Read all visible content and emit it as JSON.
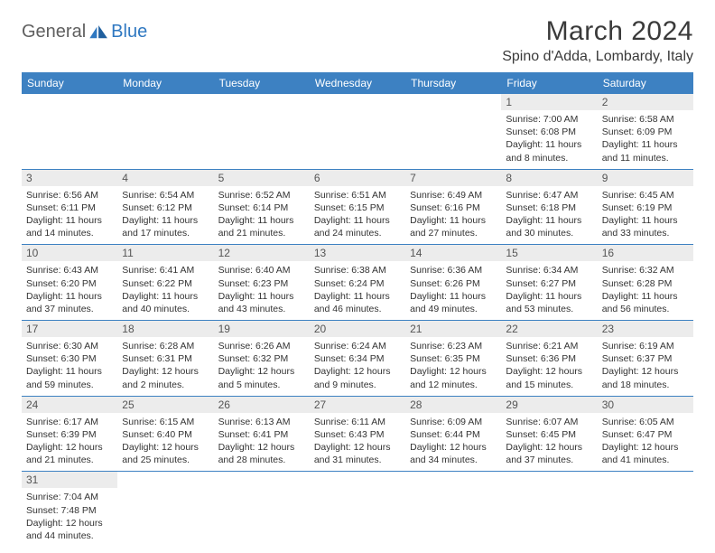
{
  "brand": {
    "general": "General",
    "blue": "Blue"
  },
  "title": "March 2024",
  "location": "Spino d'Adda, Lombardy, Italy",
  "colors": {
    "header_bg": "#3d81c2",
    "header_text": "#ffffff",
    "daynum_bg": "#ececec",
    "border": "#3d81c2",
    "brand_blue": "#2f78c1",
    "brand_gray": "#5f5f5f"
  },
  "weekdays": [
    "Sunday",
    "Monday",
    "Tuesday",
    "Wednesday",
    "Thursday",
    "Friday",
    "Saturday"
  ],
  "weeks": [
    [
      null,
      null,
      null,
      null,
      null,
      {
        "n": "1",
        "sunrise": "Sunrise: 7:00 AM",
        "sunset": "Sunset: 6:08 PM",
        "daylight": "Daylight: 11 hours and 8 minutes."
      },
      {
        "n": "2",
        "sunrise": "Sunrise: 6:58 AM",
        "sunset": "Sunset: 6:09 PM",
        "daylight": "Daylight: 11 hours and 11 minutes."
      }
    ],
    [
      {
        "n": "3",
        "sunrise": "Sunrise: 6:56 AM",
        "sunset": "Sunset: 6:11 PM",
        "daylight": "Daylight: 11 hours and 14 minutes."
      },
      {
        "n": "4",
        "sunrise": "Sunrise: 6:54 AM",
        "sunset": "Sunset: 6:12 PM",
        "daylight": "Daylight: 11 hours and 17 minutes."
      },
      {
        "n": "5",
        "sunrise": "Sunrise: 6:52 AM",
        "sunset": "Sunset: 6:14 PM",
        "daylight": "Daylight: 11 hours and 21 minutes."
      },
      {
        "n": "6",
        "sunrise": "Sunrise: 6:51 AM",
        "sunset": "Sunset: 6:15 PM",
        "daylight": "Daylight: 11 hours and 24 minutes."
      },
      {
        "n": "7",
        "sunrise": "Sunrise: 6:49 AM",
        "sunset": "Sunset: 6:16 PM",
        "daylight": "Daylight: 11 hours and 27 minutes."
      },
      {
        "n": "8",
        "sunrise": "Sunrise: 6:47 AM",
        "sunset": "Sunset: 6:18 PM",
        "daylight": "Daylight: 11 hours and 30 minutes."
      },
      {
        "n": "9",
        "sunrise": "Sunrise: 6:45 AM",
        "sunset": "Sunset: 6:19 PM",
        "daylight": "Daylight: 11 hours and 33 minutes."
      }
    ],
    [
      {
        "n": "10",
        "sunrise": "Sunrise: 6:43 AM",
        "sunset": "Sunset: 6:20 PM",
        "daylight": "Daylight: 11 hours and 37 minutes."
      },
      {
        "n": "11",
        "sunrise": "Sunrise: 6:41 AM",
        "sunset": "Sunset: 6:22 PM",
        "daylight": "Daylight: 11 hours and 40 minutes."
      },
      {
        "n": "12",
        "sunrise": "Sunrise: 6:40 AM",
        "sunset": "Sunset: 6:23 PM",
        "daylight": "Daylight: 11 hours and 43 minutes."
      },
      {
        "n": "13",
        "sunrise": "Sunrise: 6:38 AM",
        "sunset": "Sunset: 6:24 PM",
        "daylight": "Daylight: 11 hours and 46 minutes."
      },
      {
        "n": "14",
        "sunrise": "Sunrise: 6:36 AM",
        "sunset": "Sunset: 6:26 PM",
        "daylight": "Daylight: 11 hours and 49 minutes."
      },
      {
        "n": "15",
        "sunrise": "Sunrise: 6:34 AM",
        "sunset": "Sunset: 6:27 PM",
        "daylight": "Daylight: 11 hours and 53 minutes."
      },
      {
        "n": "16",
        "sunrise": "Sunrise: 6:32 AM",
        "sunset": "Sunset: 6:28 PM",
        "daylight": "Daylight: 11 hours and 56 minutes."
      }
    ],
    [
      {
        "n": "17",
        "sunrise": "Sunrise: 6:30 AM",
        "sunset": "Sunset: 6:30 PM",
        "daylight": "Daylight: 11 hours and 59 minutes."
      },
      {
        "n": "18",
        "sunrise": "Sunrise: 6:28 AM",
        "sunset": "Sunset: 6:31 PM",
        "daylight": "Daylight: 12 hours and 2 minutes."
      },
      {
        "n": "19",
        "sunrise": "Sunrise: 6:26 AM",
        "sunset": "Sunset: 6:32 PM",
        "daylight": "Daylight: 12 hours and 5 minutes."
      },
      {
        "n": "20",
        "sunrise": "Sunrise: 6:24 AM",
        "sunset": "Sunset: 6:34 PM",
        "daylight": "Daylight: 12 hours and 9 minutes."
      },
      {
        "n": "21",
        "sunrise": "Sunrise: 6:23 AM",
        "sunset": "Sunset: 6:35 PM",
        "daylight": "Daylight: 12 hours and 12 minutes."
      },
      {
        "n": "22",
        "sunrise": "Sunrise: 6:21 AM",
        "sunset": "Sunset: 6:36 PM",
        "daylight": "Daylight: 12 hours and 15 minutes."
      },
      {
        "n": "23",
        "sunrise": "Sunrise: 6:19 AM",
        "sunset": "Sunset: 6:37 PM",
        "daylight": "Daylight: 12 hours and 18 minutes."
      }
    ],
    [
      {
        "n": "24",
        "sunrise": "Sunrise: 6:17 AM",
        "sunset": "Sunset: 6:39 PM",
        "daylight": "Daylight: 12 hours and 21 minutes."
      },
      {
        "n": "25",
        "sunrise": "Sunrise: 6:15 AM",
        "sunset": "Sunset: 6:40 PM",
        "daylight": "Daylight: 12 hours and 25 minutes."
      },
      {
        "n": "26",
        "sunrise": "Sunrise: 6:13 AM",
        "sunset": "Sunset: 6:41 PM",
        "daylight": "Daylight: 12 hours and 28 minutes."
      },
      {
        "n": "27",
        "sunrise": "Sunrise: 6:11 AM",
        "sunset": "Sunset: 6:43 PM",
        "daylight": "Daylight: 12 hours and 31 minutes."
      },
      {
        "n": "28",
        "sunrise": "Sunrise: 6:09 AM",
        "sunset": "Sunset: 6:44 PM",
        "daylight": "Daylight: 12 hours and 34 minutes."
      },
      {
        "n": "29",
        "sunrise": "Sunrise: 6:07 AM",
        "sunset": "Sunset: 6:45 PM",
        "daylight": "Daylight: 12 hours and 37 minutes."
      },
      {
        "n": "30",
        "sunrise": "Sunrise: 6:05 AM",
        "sunset": "Sunset: 6:47 PM",
        "daylight": "Daylight: 12 hours and 41 minutes."
      }
    ],
    [
      {
        "n": "31",
        "sunrise": "Sunrise: 7:04 AM",
        "sunset": "Sunset: 7:48 PM",
        "daylight": "Daylight: 12 hours and 44 minutes."
      },
      null,
      null,
      null,
      null,
      null,
      null
    ]
  ]
}
